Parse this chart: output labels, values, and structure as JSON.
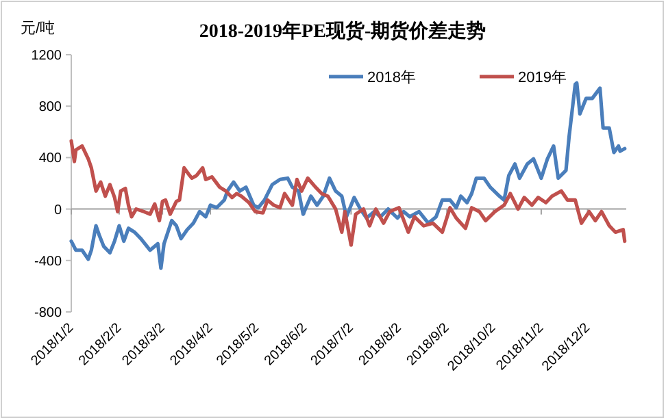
{
  "chart_data": {
    "type": "line",
    "title": "2018-2019年PE现货-期货价差走势",
    "ylabel": "元/吨",
    "legend": "top right",
    "line_style": "solid",
    "xlim": [
      "2018-01-02",
      "2018-12-27"
    ],
    "ylim": [
      -800,
      1200
    ],
    "yticks": [
      -800,
      -400,
      0,
      400,
      800,
      1200
    ],
    "xticks": [
      {
        "value": "2018-01-02",
        "label": "2018/1/2"
      },
      {
        "value": "2018-02-02",
        "label": "2018/2/2"
      },
      {
        "value": "2018-03-02",
        "label": "2018/3/2"
      },
      {
        "value": "2018-04-02",
        "label": "2018/4/2"
      },
      {
        "value": "2018-05-02",
        "label": "2018/5/2"
      },
      {
        "value": "2018-06-02",
        "label": "2018/6/2"
      },
      {
        "value": "2018-07-02",
        "label": "2018/7/2"
      },
      {
        "value": "2018-08-02",
        "label": "2018/8/2"
      },
      {
        "value": "2018-09-02",
        "label": "2018/9/2"
      },
      {
        "value": "2018-10-02",
        "label": "2018/10/2"
      },
      {
        "value": "2018-11-02",
        "label": "2018/11/2"
      },
      {
        "value": "2018-12-02",
        "label": "2018/12/2"
      }
    ],
    "series": [
      {
        "name": "2018年",
        "color": "#4a7ebb",
        "x": [
          "2018-01-02",
          "2018-01-05",
          "2018-01-09",
          "2018-01-13",
          "2018-01-15",
          "2018-01-18",
          "2018-01-20",
          "2018-01-23",
          "2018-01-27",
          "2018-01-30",
          "2018-02-02",
          "2018-02-05",
          "2018-02-08",
          "2018-02-12",
          "2018-02-16",
          "2018-02-22",
          "2018-02-27",
          "2018-03-01",
          "2018-03-03",
          "2018-03-08",
          "2018-03-11",
          "2018-03-14",
          "2018-03-18",
          "2018-03-22",
          "2018-03-26",
          "2018-03-30",
          "2018-04-02",
          "2018-04-06",
          "2018-04-11",
          "2018-04-13",
          "2018-04-17",
          "2018-04-21",
          "2018-04-25",
          "2018-04-30",
          "2018-05-03",
          "2018-05-07",
          "2018-05-12",
          "2018-05-17",
          "2018-05-22",
          "2018-05-25",
          "2018-05-29",
          "2018-06-01",
          "2018-06-06",
          "2018-06-10",
          "2018-06-14",
          "2018-06-18",
          "2018-06-22",
          "2018-06-26",
          "2018-06-29",
          "2018-07-04",
          "2018-07-08",
          "2018-07-12",
          "2018-07-17",
          "2018-07-21",
          "2018-07-26",
          "2018-08-01",
          "2018-08-05",
          "2018-08-09",
          "2018-08-15",
          "2018-08-21",
          "2018-08-26",
          "2018-08-30",
          "2018-09-04",
          "2018-09-08",
          "2018-09-11",
          "2018-09-15",
          "2018-09-18",
          "2018-09-21",
          "2018-09-26",
          "2018-09-30",
          "2018-10-06",
          "2018-10-09",
          "2018-10-12",
          "2018-10-16",
          "2018-10-19",
          "2018-10-24",
          "2018-10-28",
          "2018-11-02",
          "2018-11-06",
          "2018-11-10",
          "2018-11-13",
          "2018-11-18",
          "2018-11-20",
          "2018-11-24",
          "2018-11-25",
          "2018-11-27",
          "2018-12-01",
          "2018-12-05",
          "2018-12-10",
          "2018-12-12",
          "2018-12-16",
          "2018-12-19",
          "2018-12-22",
          "2018-12-23",
          "2018-12-26"
        ],
        "values": [
          -250,
          -320,
          -320,
          -390,
          -320,
          -130,
          -200,
          -290,
          -340,
          -250,
          -130,
          -250,
          -150,
          -180,
          -230,
          -320,
          -270,
          -460,
          -270,
          -90,
          -130,
          -230,
          -160,
          -110,
          -20,
          -60,
          30,
          10,
          70,
          140,
          210,
          140,
          170,
          30,
          10,
          70,
          190,
          230,
          240,
          170,
          140,
          -40,
          100,
          30,
          100,
          240,
          140,
          100,
          -60,
          90,
          0,
          -70,
          -20,
          -60,
          0,
          -70,
          -20,
          -60,
          -20,
          -110,
          -60,
          70,
          70,
          10,
          100,
          50,
          120,
          240,
          240,
          170,
          100,
          70,
          260,
          350,
          240,
          350,
          390,
          240,
          390,
          490,
          240,
          300,
          560,
          970,
          980,
          740,
          860,
          860,
          940,
          630,
          630,
          440,
          490,
          450,
          470
        ]
      },
      {
        "name": "2019年",
        "color": "#c0504d",
        "x": [
          "2018-01-02",
          "2018-01-04",
          "2018-01-05",
          "2018-01-09",
          "2018-01-13",
          "2018-01-15",
          "2018-01-18",
          "2018-01-21",
          "2018-01-24",
          "2018-01-27",
          "2018-01-30",
          "2018-02-01",
          "2018-02-03",
          "2018-02-06",
          "2018-02-08",
          "2018-02-10",
          "2018-02-13",
          "2018-02-18",
          "2018-02-22",
          "2018-02-25",
          "2018-02-28",
          "2018-03-02",
          "2018-03-04",
          "2018-03-07",
          "2018-03-11",
          "2018-03-13",
          "2018-03-16",
          "2018-03-19",
          "2018-03-21",
          "2018-03-24",
          "2018-03-28",
          "2018-03-30",
          "2018-04-03",
          "2018-04-08",
          "2018-04-12",
          "2018-04-16",
          "2018-04-19",
          "2018-04-22",
          "2018-04-27",
          "2018-05-01",
          "2018-05-06",
          "2018-05-09",
          "2018-05-13",
          "2018-05-17",
          "2018-05-20",
          "2018-05-25",
          "2018-05-28",
          "2018-05-31",
          "2018-06-04",
          "2018-06-09",
          "2018-06-13",
          "2018-06-17",
          "2018-06-22",
          "2018-06-26",
          "2018-06-28",
          "2018-07-02",
          "2018-07-05",
          "2018-07-10",
          "2018-07-14",
          "2018-07-18",
          "2018-07-23",
          "2018-07-27",
          "2018-08-02",
          "2018-08-08",
          "2018-08-12",
          "2018-08-18",
          "2018-08-24",
          "2018-08-30",
          "2018-09-04",
          "2018-09-08",
          "2018-09-14",
          "2018-09-18",
          "2018-09-23",
          "2018-09-27",
          "2018-10-03",
          "2018-10-09",
          "2018-10-13",
          "2018-10-18",
          "2018-10-22",
          "2018-10-27",
          "2018-10-31",
          "2018-11-05",
          "2018-11-09",
          "2018-11-15",
          "2018-11-19",
          "2018-11-24",
          "2018-11-28",
          "2018-12-03",
          "2018-12-07",
          "2018-12-11",
          "2018-12-16",
          "2018-12-20",
          "2018-12-25",
          "2018-12-26"
        ],
        "values": [
          530,
          370,
          460,
          490,
          390,
          320,
          140,
          210,
          100,
          190,
          90,
          -20,
          140,
          160,
          30,
          -60,
          0,
          -20,
          -40,
          40,
          -90,
          60,
          70,
          -40,
          60,
          70,
          320,
          270,
          240,
          260,
          320,
          230,
          250,
          170,
          140,
          90,
          120,
          100,
          50,
          -20,
          -30,
          70,
          30,
          10,
          120,
          30,
          230,
          140,
          240,
          170,
          120,
          100,
          0,
          -180,
          -20,
          -280,
          -40,
          0,
          -130,
          0,
          -110,
          -20,
          10,
          -180,
          -60,
          -130,
          -110,
          -180,
          10,
          -70,
          -150,
          10,
          -20,
          -90,
          -20,
          30,
          120,
          0,
          90,
          30,
          90,
          50,
          100,
          140,
          70,
          70,
          -110,
          -20,
          -90,
          -20,
          -130,
          -180,
          -160,
          -250
        ]
      }
    ]
  }
}
